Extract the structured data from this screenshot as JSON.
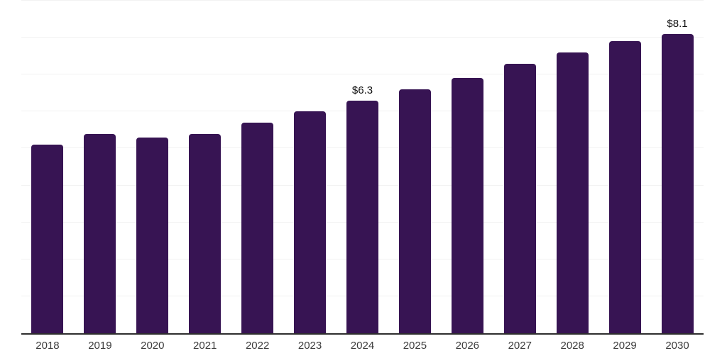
{
  "chart_data": {
    "type": "bar",
    "title": "",
    "categories": [
      "2018",
      "2019",
      "2020",
      "2021",
      "2022",
      "2023",
      "2024",
      "2025",
      "2026",
      "2027",
      "2028",
      "2029",
      "2030"
    ],
    "values": [
      5.1,
      5.4,
      5.3,
      5.4,
      5.7,
      6.0,
      6.3,
      6.6,
      6.9,
      7.3,
      7.6,
      7.9,
      8.1
    ],
    "data_labels": [
      "",
      "",
      "",
      "",
      "",
      "",
      "$6.3",
      "",
      "",
      "",
      "",
      "",
      "$8.1"
    ],
    "xlabel": "",
    "ylabel": "",
    "ylim": [
      0,
      9
    ],
    "y_gridline_step": 1,
    "grid": "horizontal",
    "legend": "none",
    "y_axis_labels_visible": false
  },
  "colors": {
    "bar": "#371453",
    "gridline": "#f2f2f2",
    "axis_line": "#2e2e2e",
    "data_label": "#111111",
    "tick_label": "#3c3c3c",
    "background": "#ffffff"
  }
}
